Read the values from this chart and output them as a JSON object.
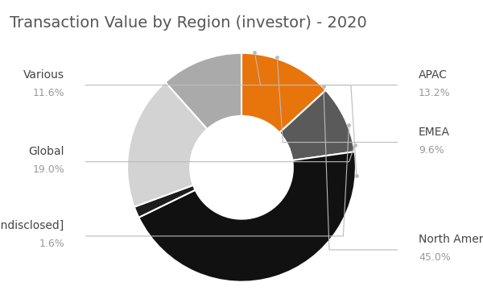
{
  "title": "Transaction Value by Region (investor) - 2020",
  "labels": [
    "APAC",
    "EMEA",
    "North America",
    "[Undisclosed]",
    "Global",
    "Various"
  ],
  "values": [
    13.2,
    9.6,
    45.0,
    1.6,
    19.0,
    11.6
  ],
  "colors": [
    "#E8740C",
    "#5A5A5A",
    "#111111",
    "#1C1C1C",
    "#D3D3D3",
    "#AAAAAA"
  ],
  "background_color": "#ffffff",
  "title_fontsize": 14,
  "label_fontsize": 10,
  "pct_fontsize": 9,
  "label_color": "#444444",
  "pct_color": "#999999",
  "line_color": "#BBBBBB",
  "donut_width": 0.55
}
